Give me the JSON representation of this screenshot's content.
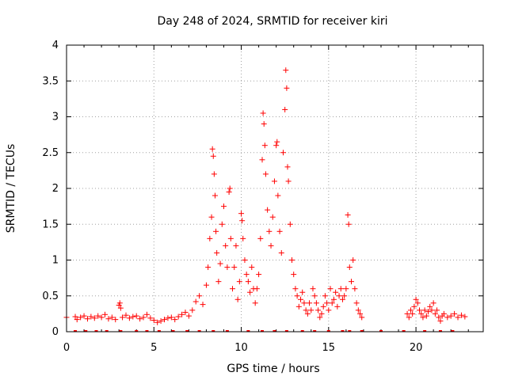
{
  "chart_data": {
    "type": "scatter",
    "title": "Day 248 of 2024, SRMTID for receiver kiri",
    "xlabel": "GPS time / hours",
    "ylabel": "SRMTID / TECUs",
    "xlim": [
      0,
      23.85
    ],
    "ylim": [
      0,
      4
    ],
    "xticks": [
      0,
      5,
      10,
      15,
      20
    ],
    "yticks": [
      0,
      0.5,
      1,
      1.5,
      2,
      2.5,
      3,
      3.5,
      4
    ],
    "ytick_labels": [
      "0",
      "0.5",
      "1",
      "1.5",
      "2",
      "2.5",
      "3",
      "3.5",
      "4"
    ],
    "grid": true,
    "marker": "+",
    "color": "#ff0000",
    "series": [
      {
        "name": "SRMTID",
        "points": [
          [
            0.0,
            0.2
          ],
          [
            0.5,
            0.21
          ],
          [
            0.6,
            0.17
          ],
          [
            0.8,
            0.2
          ],
          [
            1.0,
            0.22
          ],
          [
            1.2,
            0.18
          ],
          [
            1.4,
            0.21
          ],
          [
            1.6,
            0.19
          ],
          [
            1.8,
            0.22
          ],
          [
            2.0,
            0.2
          ],
          [
            2.2,
            0.24
          ],
          [
            2.4,
            0.18
          ],
          [
            2.6,
            0.2
          ],
          [
            2.8,
            0.17
          ],
          [
            3.0,
            0.37
          ],
          [
            3.05,
            0.4
          ],
          [
            3.1,
            0.33
          ],
          [
            3.2,
            0.2
          ],
          [
            3.4,
            0.23
          ],
          [
            3.6,
            0.19
          ],
          [
            3.8,
            0.21
          ],
          [
            4.0,
            0.22
          ],
          [
            4.2,
            0.18
          ],
          [
            4.4,
            0.2
          ],
          [
            4.6,
            0.24
          ],
          [
            4.8,
            0.19
          ],
          [
            5.0,
            0.16
          ],
          [
            5.2,
            0.13
          ],
          [
            5.4,
            0.15
          ],
          [
            5.6,
            0.17
          ],
          [
            5.8,
            0.19
          ],
          [
            6.0,
            0.2
          ],
          [
            6.2,
            0.17
          ],
          [
            6.4,
            0.21
          ],
          [
            6.6,
            0.24
          ],
          [
            6.8,
            0.27
          ],
          [
            7.0,
            0.22
          ],
          [
            7.2,
            0.3
          ],
          [
            7.4,
            0.42
          ],
          [
            7.6,
            0.5
          ],
          [
            7.8,
            0.38
          ],
          [
            8.0,
            0.65
          ],
          [
            8.1,
            0.9
          ],
          [
            8.2,
            1.3
          ],
          [
            8.3,
            1.6
          ],
          [
            8.35,
            2.55
          ],
          [
            8.4,
            2.45
          ],
          [
            8.45,
            2.2
          ],
          [
            8.5,
            1.9
          ],
          [
            8.55,
            1.4
          ],
          [
            8.6,
            1.1
          ],
          [
            8.7,
            0.7
          ],
          [
            8.8,
            0.95
          ],
          [
            8.9,
            1.5
          ],
          [
            9.0,
            1.75
          ],
          [
            9.1,
            1.2
          ],
          [
            9.2,
            0.9
          ],
          [
            9.3,
            1.95
          ],
          [
            9.35,
            2.0
          ],
          [
            9.4,
            1.3
          ],
          [
            9.5,
            0.6
          ],
          [
            9.6,
            0.9
          ],
          [
            9.7,
            1.2
          ],
          [
            9.8,
            0.45
          ],
          [
            9.9,
            0.7
          ],
          [
            10.0,
            1.65
          ],
          [
            10.05,
            1.55
          ],
          [
            10.1,
            1.3
          ],
          [
            10.2,
            1.0
          ],
          [
            10.3,
            0.8
          ],
          [
            10.4,
            0.7
          ],
          [
            10.5,
            0.55
          ],
          [
            10.6,
            0.9
          ],
          [
            10.7,
            0.6
          ],
          [
            10.8,
            0.4
          ],
          [
            10.9,
            0.6
          ],
          [
            11.0,
            0.8
          ],
          [
            11.1,
            1.3
          ],
          [
            11.2,
            2.4
          ],
          [
            11.25,
            3.05
          ],
          [
            11.3,
            2.9
          ],
          [
            11.35,
            2.6
          ],
          [
            11.4,
            2.2
          ],
          [
            11.5,
            1.7
          ],
          [
            11.6,
            1.4
          ],
          [
            11.7,
            1.2
          ],
          [
            11.8,
            1.6
          ],
          [
            11.9,
            2.1
          ],
          [
            12.0,
            2.6
          ],
          [
            12.05,
            2.65
          ],
          [
            12.1,
            1.9
          ],
          [
            12.2,
            1.4
          ],
          [
            12.3,
            1.1
          ],
          [
            12.4,
            2.5
          ],
          [
            12.5,
            3.1
          ],
          [
            12.55,
            3.65
          ],
          [
            12.6,
            3.4
          ],
          [
            12.65,
            2.3
          ],
          [
            12.7,
            2.1
          ],
          [
            12.8,
            1.5
          ],
          [
            12.9,
            1.0
          ],
          [
            13.0,
            0.8
          ],
          [
            13.1,
            0.6
          ],
          [
            13.2,
            0.5
          ],
          [
            13.3,
            0.35
          ],
          [
            13.4,
            0.45
          ],
          [
            13.5,
            0.55
          ],
          [
            13.6,
            0.4
          ],
          [
            13.7,
            0.3
          ],
          [
            13.8,
            0.25
          ],
          [
            13.9,
            0.4
          ],
          [
            14.0,
            0.3
          ],
          [
            14.1,
            0.6
          ],
          [
            14.2,
            0.5
          ],
          [
            14.3,
            0.4
          ],
          [
            14.4,
            0.3
          ],
          [
            14.5,
            0.2
          ],
          [
            14.6,
            0.25
          ],
          [
            14.7,
            0.35
          ],
          [
            14.8,
            0.5
          ],
          [
            14.9,
            0.4
          ],
          [
            15.0,
            0.3
          ],
          [
            15.1,
            0.6
          ],
          [
            15.2,
            0.4
          ],
          [
            15.3,
            0.45
          ],
          [
            15.4,
            0.55
          ],
          [
            15.5,
            0.35
          ],
          [
            15.6,
            0.5
          ],
          [
            15.7,
            0.6
          ],
          [
            15.8,
            0.45
          ],
          [
            15.9,
            0.5
          ],
          [
            16.0,
            0.6
          ],
          [
            16.1,
            1.63
          ],
          [
            16.15,
            1.5
          ],
          [
            16.2,
            0.9
          ],
          [
            16.3,
            0.7
          ],
          [
            16.4,
            1.0
          ],
          [
            16.5,
            0.6
          ],
          [
            16.6,
            0.4
          ],
          [
            16.7,
            0.3
          ],
          [
            16.8,
            0.25
          ],
          [
            16.9,
            0.2
          ],
          [
            19.5,
            0.25
          ],
          [
            19.6,
            0.2
          ],
          [
            19.7,
            0.3
          ],
          [
            19.8,
            0.25
          ],
          [
            19.9,
            0.35
          ],
          [
            20.0,
            0.45
          ],
          [
            20.1,
            0.4
          ],
          [
            20.2,
            0.3
          ],
          [
            20.3,
            0.25
          ],
          [
            20.4,
            0.2
          ],
          [
            20.5,
            0.3
          ],
          [
            20.6,
            0.22
          ],
          [
            20.7,
            0.28
          ],
          [
            20.8,
            0.35
          ],
          [
            20.9,
            0.3
          ],
          [
            21.0,
            0.4
          ],
          [
            21.1,
            0.25
          ],
          [
            21.2,
            0.3
          ],
          [
            21.3,
            0.2
          ],
          [
            21.4,
            0.15
          ],
          [
            21.5,
            0.22
          ],
          [
            21.6,
            0.25
          ],
          [
            21.8,
            0.2
          ],
          [
            22.0,
            0.22
          ],
          [
            22.2,
            0.25
          ],
          [
            22.4,
            0.2
          ],
          [
            22.6,
            0.23
          ],
          [
            22.8,
            0.21
          ]
        ]
      }
    ],
    "gap_markers_x": [
      0.5,
      1.1,
      1.7,
      2.3,
      3.1,
      4.0,
      4.6,
      5.3,
      6.1,
      6.9,
      7.6,
      8.4,
      9.2,
      10.4,
      11.2,
      11.9,
      12.6,
      13.5,
      14.2,
      15.0,
      15.8,
      16.2,
      16.9,
      18.0,
      19.3,
      20.5,
      21.4,
      22.1
    ]
  }
}
